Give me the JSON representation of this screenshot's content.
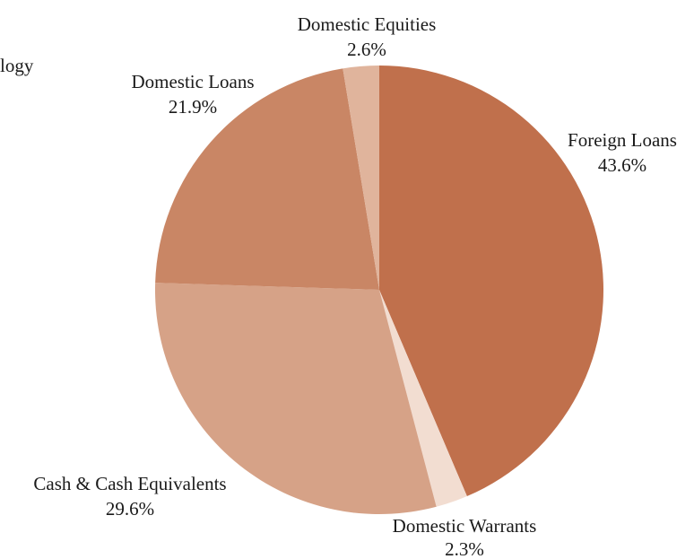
{
  "chart_data": {
    "type": "pie",
    "title": "",
    "cut_label": "logy",
    "slices": [
      {
        "label": "Foreign Loans",
        "value": 43.6,
        "value_label": "43.6%",
        "color": "#c0704c"
      },
      {
        "label": "Domestic Warrants",
        "value": 2.3,
        "value_label": "2.3%",
        "color": "#f2ddd1"
      },
      {
        "label": "Cash & Cash Equivalents",
        "value": 29.6,
        "value_label": "29.6%",
        "color": "#d6a287"
      },
      {
        "label": "Domestic Loans",
        "value": 21.9,
        "value_label": "21.9%",
        "color": "#c98665"
      },
      {
        "label": "Domestic Equities",
        "value": 2.6,
        "value_label": "2.6%",
        "color": "#e0b49c"
      }
    ],
    "start_angle": "12 o'clock",
    "direction": "clockwise",
    "legend": "none"
  }
}
